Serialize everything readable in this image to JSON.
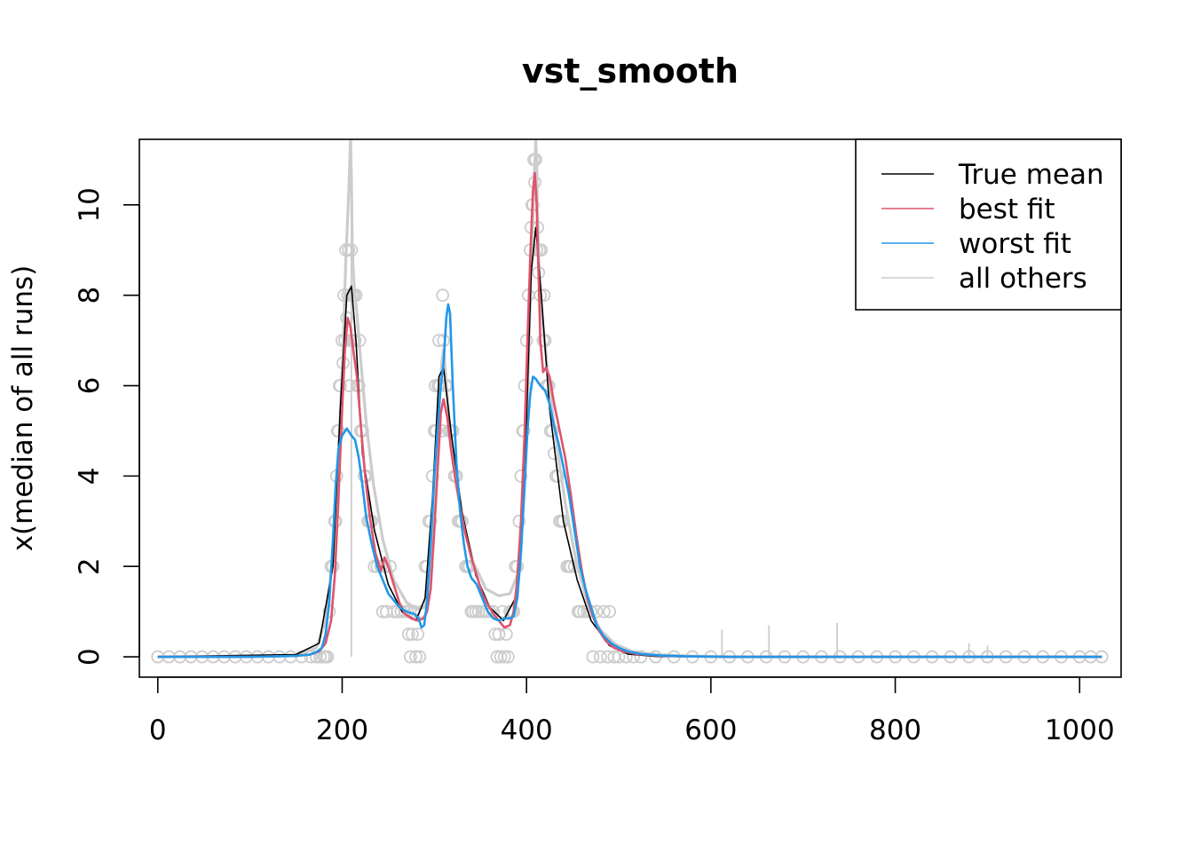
{
  "chart_data": {
    "type": "line",
    "title": "vst_smooth",
    "xlabel": "",
    "ylabel": "x(median of all runs)",
    "xlim": [
      -20,
      1045
    ],
    "ylim": [
      -0.45,
      11.45
    ],
    "x_ticks": [
      "0",
      "200",
      "400",
      "600",
      "800",
      "1000"
    ],
    "y_ticks": [
      "0",
      "2",
      "4",
      "6",
      "8",
      "10"
    ],
    "colors": {
      "true_mean": "#000000",
      "best_fit": "#DF536B",
      "worst_fit": "#2297E6",
      "all_others": "#CCCCCC"
    },
    "legend": {
      "position": "top-right",
      "entries": [
        "True mean",
        "best fit",
        "worst fit",
        "all others"
      ]
    },
    "series": [
      {
        "name": "True mean",
        "x": [
          0,
          150,
          175,
          190,
          198,
          205,
          210,
          215,
          222,
          235,
          250,
          265,
          280,
          290,
          298,
          305,
          310,
          318,
          330,
          345,
          360,
          375,
          388,
          398,
          405,
          410,
          416,
          425,
          440,
          455,
          470,
          490,
          510,
          540,
          600,
          1024
        ],
        "y": [
          0,
          0.05,
          0.3,
          2.0,
          5.5,
          8.0,
          8.2,
          7.0,
          4.5,
          2.8,
          1.6,
          1.0,
          0.8,
          1.3,
          3.5,
          6.2,
          6.4,
          5.0,
          3.2,
          1.8,
          1.1,
          0.8,
          1.3,
          4.0,
          8.5,
          9.5,
          8.0,
          5.5,
          3.0,
          1.7,
          0.8,
          0.25,
          0.06,
          0.01,
          0,
          0
        ]
      },
      {
        "name": "best fit",
        "x": [
          0,
          100,
          150,
          165,
          175,
          182,
          188,
          192,
          196,
          200,
          203,
          206,
          209,
          212,
          216,
          220,
          225,
          230,
          236,
          242,
          246,
          250,
          256,
          262,
          268,
          275,
          282,
          288,
          292,
          296,
          300,
          304,
          307,
          310,
          314,
          318,
          323,
          328,
          334,
          340,
          346,
          352,
          358,
          364,
          370,
          376,
          382,
          386,
          390,
          394,
          398,
          401,
          404,
          407,
          409,
          411,
          413,
          415,
          418,
          421,
          425,
          430,
          436,
          442,
          448,
          454,
          460,
          466,
          472,
          478,
          486,
          495,
          505,
          520,
          540,
          570,
          620,
          700,
          800,
          900,
          1024
        ],
        "y": [
          0,
          0,
          0.02,
          0.05,
          0.12,
          0.3,
          0.8,
          1.8,
          3.5,
          5.5,
          6.8,
          7.5,
          7.3,
          6.8,
          6.2,
          5.2,
          4.0,
          3.1,
          2.3,
          1.9,
          2.2,
          2.0,
          1.6,
          1.2,
          0.95,
          0.85,
          0.8,
          0.85,
          1.0,
          1.5,
          2.8,
          4.3,
          5.4,
          5.7,
          5.3,
          4.6,
          3.9,
          3.3,
          2.7,
          2.2,
          1.8,
          1.4,
          1.15,
          0.95,
          0.8,
          0.65,
          0.7,
          1.0,
          1.7,
          3.0,
          5.0,
          7.0,
          8.8,
          10.3,
          10.7,
          10.0,
          8.5,
          7.0,
          6.3,
          6.4,
          6.2,
          5.6,
          5.0,
          4.4,
          3.6,
          2.7,
          1.9,
          1.3,
          0.9,
          0.6,
          0.35,
          0.2,
          0.12,
          0.06,
          0.03,
          0.01,
          0,
          0,
          0,
          0,
          0
        ]
      },
      {
        "name": "worst fit",
        "x": [
          0,
          100,
          150,
          165,
          172,
          178,
          182,
          186,
          190,
          193,
          196,
          200,
          205,
          210,
          214,
          218,
          222,
          226,
          232,
          238,
          244,
          250,
          256,
          262,
          270,
          278,
          283,
          286,
          289,
          292,
          296,
          300,
          304,
          307,
          310,
          313,
          315,
          317,
          320,
          324,
          328,
          332,
          336,
          340,
          346,
          352,
          358,
          364,
          370,
          376,
          382,
          386,
          390,
          394,
          398,
          401,
          404,
          407,
          410,
          415,
          420,
          425,
          430,
          435,
          440,
          446,
          452,
          458,
          464,
          470,
          476,
          484,
          492,
          500,
          510,
          525,
          545,
          575,
          620,
          700,
          800,
          900,
          1024
        ],
        "y": [
          0,
          0,
          0.02,
          0.05,
          0.1,
          0.2,
          0.5,
          1.2,
          2.6,
          3.8,
          4.6,
          4.9,
          5.05,
          4.9,
          4.8,
          4.4,
          3.8,
          3.1,
          2.5,
          2.0,
          1.7,
          1.4,
          1.25,
          1.1,
          1.0,
          0.95,
          0.85,
          0.65,
          0.7,
          1.2,
          2.5,
          4.0,
          5.2,
          6.0,
          6.5,
          7.5,
          7.8,
          7.6,
          6.0,
          4.3,
          3.2,
          2.5,
          2.0,
          1.75,
          1.6,
          1.3,
          1.0,
          0.85,
          0.8,
          0.85,
          0.85,
          0.9,
          1.3,
          2.3,
          3.8,
          5.0,
          5.8,
          6.2,
          6.15,
          6.0,
          5.9,
          5.6,
          5.1,
          4.7,
          4.2,
          3.6,
          2.8,
          2.0,
          1.5,
          1.1,
          0.7,
          0.45,
          0.3,
          0.2,
          0.12,
          0.06,
          0.03,
          0.01,
          0,
          0,
          0,
          0,
          0
        ]
      },
      {
        "name": "all others",
        "x": [
          0,
          150,
          172,
          182,
          190,
          196,
          201,
          204,
          207,
          209,
          210,
          211,
          213,
          216,
          220,
          226,
          234,
          244,
          256,
          270,
          282,
          290,
          296,
          301,
          305,
          308,
          310,
          312,
          315,
          320,
          330,
          342,
          356,
          370,
          382,
          390,
          396,
          401,
          405,
          408,
          410,
          411,
          412,
          414,
          418,
          424,
          432,
          442,
          454,
          466,
          480,
          496,
          515,
          540,
          575,
          620,
          700,
          800,
          900,
          1024
        ],
        "y": [
          0,
          0.03,
          0.2,
          0.8,
          2.2,
          4.5,
          6.8,
          8.8,
          10.2,
          11.4,
          10.6,
          9.0,
          8.2,
          7.6,
          6.6,
          5.2,
          3.8,
          2.6,
          1.7,
          1.2,
          1.05,
          1.1,
          2.0,
          3.8,
          5.5,
          6.5,
          6.8,
          6.3,
          5.5,
          4.4,
          3.1,
          2.1,
          1.5,
          1.35,
          1.4,
          1.8,
          3.2,
          5.8,
          8.5,
          10.5,
          11.4,
          11.0,
          9.8,
          8.4,
          7.3,
          6.1,
          4.8,
          3.4,
          2.1,
          1.2,
          0.6,
          0.28,
          0.12,
          0.05,
          0.02,
          0,
          0,
          0,
          0,
          0
        ]
      }
    ],
    "observed_points_color": "#CCCCCC",
    "observed_points": [
      [
        0,
        0
      ],
      [
        12,
        0
      ],
      [
        24,
        0
      ],
      [
        36,
        0
      ],
      [
        48,
        0
      ],
      [
        60,
        0
      ],
      [
        72,
        0
      ],
      [
        84,
        0
      ],
      [
        96,
        0
      ],
      [
        108,
        0
      ],
      [
        120,
        0
      ],
      [
        132,
        0
      ],
      [
        144,
        0
      ],
      [
        156,
        0
      ],
      [
        166,
        0
      ],
      [
        172,
        0
      ],
      [
        176,
        0
      ],
      [
        180,
        0
      ],
      [
        182,
        0
      ],
      [
        184,
        0
      ],
      [
        186,
        1
      ],
      [
        188,
        2
      ],
      [
        190,
        2
      ],
      [
        192,
        3
      ],
      [
        193,
        3
      ],
      [
        194,
        4
      ],
      [
        195,
        5
      ],
      [
        196,
        5
      ],
      [
        197,
        6
      ],
      [
        198,
        6
      ],
      [
        200,
        7
      ],
      [
        201,
        6.5
      ],
      [
        202,
        8
      ],
      [
        203,
        7
      ],
      [
        204,
        9
      ],
      [
        205,
        7.5
      ],
      [
        206,
        8
      ],
      [
        207,
        9
      ],
      [
        208,
        6
      ],
      [
        209,
        7
      ],
      [
        210,
        9
      ],
      [
        211,
        8
      ],
      [
        212,
        7
      ],
      [
        213,
        8
      ],
      [
        214,
        7
      ],
      [
        215,
        8
      ],
      [
        216,
        6
      ],
      [
        218,
        6
      ],
      [
        219,
        7
      ],
      [
        220,
        5
      ],
      [
        222,
        5
      ],
      [
        224,
        4
      ],
      [
        226,
        4
      ],
      [
        228,
        3
      ],
      [
        230,
        3
      ],
      [
        232,
        3
      ],
      [
        235,
        2
      ],
      [
        238,
        2
      ],
      [
        242,
        2
      ],
      [
        244,
        1
      ],
      [
        246,
        2
      ],
      [
        248,
        1
      ],
      [
        252,
        2
      ],
      [
        256,
        1
      ],
      [
        260,
        1
      ],
      [
        264,
        1
      ],
      [
        268,
        1
      ],
      [
        271,
        1
      ],
      [
        272,
        0.5
      ],
      [
        274,
        0
      ],
      [
        276,
        0.5
      ],
      [
        278,
        1
      ],
      [
        280,
        0
      ],
      [
        282,
        0.5
      ],
      [
        284,
        0
      ],
      [
        286,
        1
      ],
      [
        290,
        2
      ],
      [
        292,
        2
      ],
      [
        294,
        3
      ],
      [
        296,
        3
      ],
      [
        298,
        4
      ],
      [
        300,
        5
      ],
      [
        301,
        6
      ],
      [
        302,
        5
      ],
      [
        304,
        6
      ],
      [
        305,
        7
      ],
      [
        306,
        6
      ],
      [
        308,
        5
      ],
      [
        309,
        8
      ],
      [
        310,
        7
      ],
      [
        312,
        6
      ],
      [
        314,
        6
      ],
      [
        316,
        5
      ],
      [
        318,
        5
      ],
      [
        320,
        5
      ],
      [
        322,
        4
      ],
      [
        324,
        4
      ],
      [
        326,
        3
      ],
      [
        328,
        3
      ],
      [
        330,
        3
      ],
      [
        334,
        2
      ],
      [
        336,
        2
      ],
      [
        338,
        2
      ],
      [
        340,
        1
      ],
      [
        342,
        1
      ],
      [
        345,
        1
      ],
      [
        348,
        1
      ],
      [
        352,
        1
      ],
      [
        356,
        1
      ],
      [
        360,
        1
      ],
      [
        364,
        1
      ],
      [
        366,
        0.5
      ],
      [
        368,
        0
      ],
      [
        370,
        0.5
      ],
      [
        372,
        0
      ],
      [
        374,
        1
      ],
      [
        376,
        0
      ],
      [
        378,
        0.5
      ],
      [
        380,
        0
      ],
      [
        382,
        1
      ],
      [
        384,
        1
      ],
      [
        386,
        1
      ],
      [
        388,
        2
      ],
      [
        390,
        2
      ],
      [
        392,
        3
      ],
      [
        394,
        4
      ],
      [
        396,
        5
      ],
      [
        397,
        5
      ],
      [
        398,
        6
      ],
      [
        400,
        7
      ],
      [
        402,
        8
      ],
      [
        404,
        9
      ],
      [
        405,
        9.5
      ],
      [
        406,
        10
      ],
      [
        407,
        10
      ],
      [
        408,
        11
      ],
      [
        409,
        10.5
      ],
      [
        410,
        11
      ],
      [
        411,
        9
      ],
      [
        412,
        9.5
      ],
      [
        413,
        8.5
      ],
      [
        414,
        9
      ],
      [
        415,
        8
      ],
      [
        416,
        9
      ],
      [
        418,
        7
      ],
      [
        419,
        8
      ],
      [
        420,
        7
      ],
      [
        422,
        6
      ],
      [
        424,
        6
      ],
      [
        426,
        5
      ],
      [
        428,
        5
      ],
      [
        430,
        4.5
      ],
      [
        432,
        4
      ],
      [
        434,
        4
      ],
      [
        436,
        3
      ],
      [
        438,
        3
      ],
      [
        440,
        3
      ],
      [
        444,
        2
      ],
      [
        446,
        2
      ],
      [
        448,
        2
      ],
      [
        452,
        2
      ],
      [
        456,
        1
      ],
      [
        458,
        1
      ],
      [
        462,
        1
      ],
      [
        466,
        1
      ],
      [
        470,
        1
      ],
      [
        472,
        0
      ],
      [
        476,
        1
      ],
      [
        480,
        0
      ],
      [
        484,
        1
      ],
      [
        488,
        0
      ],
      [
        490,
        1
      ],
      [
        495,
        0
      ],
      [
        500,
        0
      ],
      [
        508,
        0
      ],
      [
        516,
        0
      ],
      [
        524,
        0
      ],
      [
        540,
        0
      ],
      [
        560,
        0
      ],
      [
        580,
        0
      ],
      [
        600,
        0
      ],
      [
        620,
        0
      ],
      [
        640,
        0
      ],
      [
        660,
        0
      ],
      [
        680,
        0
      ],
      [
        700,
        0
      ],
      [
        720,
        0
      ],
      [
        740,
        0
      ],
      [
        760,
        0
      ],
      [
        780,
        0
      ],
      [
        800,
        0
      ],
      [
        820,
        0
      ],
      [
        840,
        0
      ],
      [
        860,
        0
      ],
      [
        880,
        0
      ],
      [
        900,
        0
      ],
      [
        920,
        0
      ],
      [
        940,
        0
      ],
      [
        960,
        0
      ],
      [
        980,
        0
      ],
      [
        1000,
        0
      ],
      [
        1012,
        0
      ],
      [
        1024,
        0
      ]
    ],
    "spikes": [
      [
        210,
        11.45
      ],
      [
        612,
        0.6
      ],
      [
        663,
        0.7
      ],
      [
        737,
        0.75
      ],
      [
        880,
        0.3
      ],
      [
        900,
        0.25
      ]
    ]
  }
}
